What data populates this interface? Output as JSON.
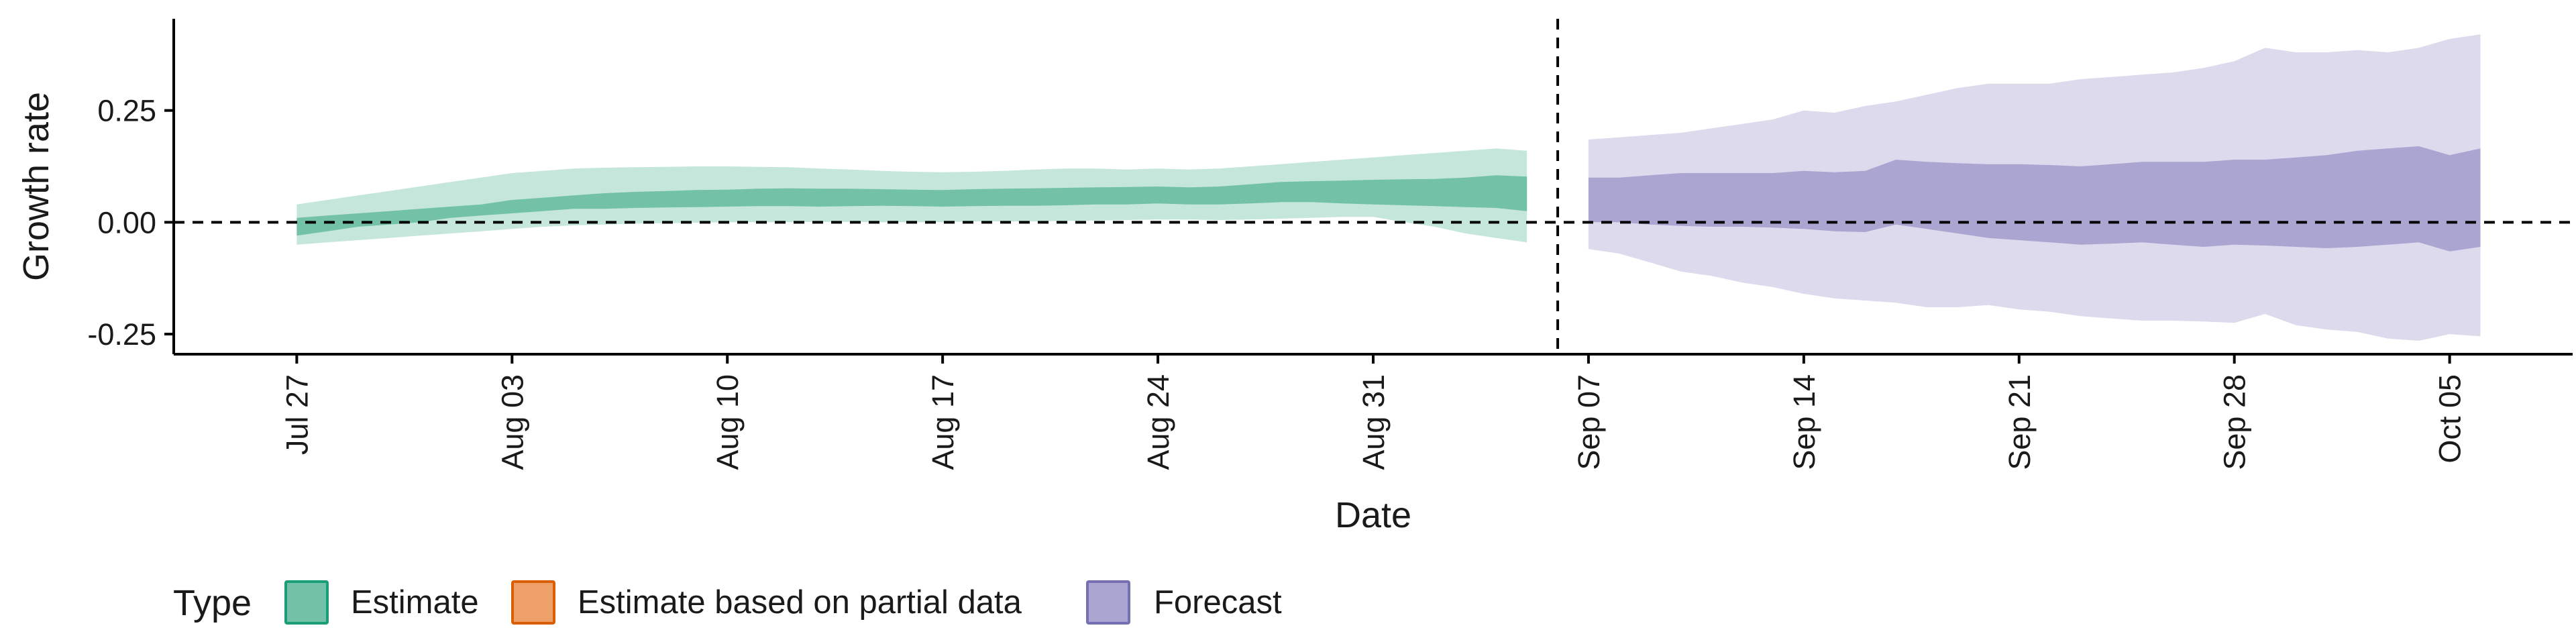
{
  "chart_data": {
    "type": "area",
    "xlabel": "Date",
    "ylabel": "Growth rate",
    "x_axis_type": "date",
    "xlim": [
      "2020-07-23",
      "2020-10-09"
    ],
    "ylim": [
      -0.295,
      0.455
    ],
    "yticks": [
      -0.25,
      0.0,
      0.25
    ],
    "ytick_labels": [
      "-0.25",
      "0.00",
      "0.25"
    ],
    "xticks": [
      "2020-07-27",
      "2020-08-03",
      "2020-08-10",
      "2020-08-17",
      "2020-08-24",
      "2020-08-31",
      "2020-09-07",
      "2020-09-14",
      "2020-09-21",
      "2020-09-28",
      "2020-10-05"
    ],
    "xtick_labels": [
      "Jul 27",
      "Aug 03",
      "Aug 10",
      "Aug 17",
      "Aug 24",
      "Aug 31",
      "Sep 07",
      "Sep 14",
      "Sep 21",
      "Sep 28",
      "Oct 05"
    ],
    "hline": 0,
    "vline": "2020-09-06",
    "grid": false,
    "legend": {
      "title": "Type",
      "position": "bottom-left",
      "entries": [
        {
          "label": "Estimate",
          "fill": "#73c2a8",
          "stroke": "#1b9e77"
        },
        {
          "label": "Estimate based on partial data",
          "fill": "#eda068",
          "stroke": "#d95f02"
        },
        {
          "label": "Forecast",
          "fill": "#aba5d1",
          "stroke": "#7570b3"
        }
      ]
    },
    "series": [
      {
        "name": "Estimate",
        "outer_color": "#c5e6db",
        "inner_color": "#73c2a8",
        "x": [
          "2020-07-27",
          "2020-07-28",
          "2020-07-29",
          "2020-07-30",
          "2020-07-31",
          "2020-08-01",
          "2020-08-02",
          "2020-08-03",
          "2020-08-04",
          "2020-08-05",
          "2020-08-06",
          "2020-08-07",
          "2020-08-08",
          "2020-08-09",
          "2020-08-10",
          "2020-08-11",
          "2020-08-12",
          "2020-08-13",
          "2020-08-14",
          "2020-08-15",
          "2020-08-16",
          "2020-08-17",
          "2020-08-18",
          "2020-08-19",
          "2020-08-20",
          "2020-08-21",
          "2020-08-22",
          "2020-08-23",
          "2020-08-24",
          "2020-08-25",
          "2020-08-26",
          "2020-08-27",
          "2020-08-28",
          "2020-08-29",
          "2020-08-30",
          "2020-08-31",
          "2020-09-01",
          "2020-09-02",
          "2020-09-03",
          "2020-09-04",
          "2020-09-05"
        ],
        "lower_90": [
          -0.05,
          -0.045,
          -0.04,
          -0.035,
          -0.03,
          -0.025,
          -0.02,
          -0.015,
          -0.01,
          -0.007,
          -0.005,
          -0.003,
          -0.002,
          -0.001,
          0.0,
          0.0,
          0.0,
          0.001,
          0.001,
          0.0,
          0.0,
          0.0,
          0.002,
          0.002,
          0.002,
          0.003,
          0.004,
          0.005,
          0.006,
          0.006,
          0.005,
          0.006,
          0.008,
          0.01,
          0.012,
          0.012,
          0.0,
          -0.01,
          -0.025,
          -0.035,
          -0.045
        ],
        "lower_50": [
          -0.03,
          -0.02,
          -0.01,
          -0.005,
          0.0,
          0.01,
          0.015,
          0.02,
          0.025,
          0.03,
          0.03,
          0.032,
          0.033,
          0.034,
          0.035,
          0.036,
          0.036,
          0.035,
          0.036,
          0.037,
          0.036,
          0.035,
          0.036,
          0.037,
          0.037,
          0.038,
          0.04,
          0.04,
          0.042,
          0.04,
          0.04,
          0.042,
          0.045,
          0.045,
          0.042,
          0.04,
          0.038,
          0.036,
          0.034,
          0.032,
          0.025
        ],
        "upper_50": [
          0.01,
          0.015,
          0.02,
          0.025,
          0.03,
          0.035,
          0.04,
          0.05,
          0.055,
          0.06,
          0.065,
          0.068,
          0.07,
          0.072,
          0.073,
          0.075,
          0.076,
          0.075,
          0.075,
          0.074,
          0.073,
          0.072,
          0.074,
          0.075,
          0.076,
          0.077,
          0.078,
          0.079,
          0.08,
          0.078,
          0.08,
          0.085,
          0.09,
          0.092,
          0.093,
          0.095,
          0.096,
          0.097,
          0.1,
          0.105,
          0.102
        ],
        "upper_90": [
          0.04,
          0.05,
          0.06,
          0.07,
          0.08,
          0.09,
          0.1,
          0.11,
          0.115,
          0.12,
          0.122,
          0.123,
          0.124,
          0.125,
          0.125,
          0.124,
          0.123,
          0.12,
          0.118,
          0.115,
          0.113,
          0.112,
          0.113,
          0.115,
          0.118,
          0.12,
          0.12,
          0.118,
          0.12,
          0.118,
          0.12,
          0.125,
          0.13,
          0.135,
          0.14,
          0.145,
          0.15,
          0.155,
          0.16,
          0.165,
          0.16
        ]
      },
      {
        "name": "Forecast",
        "outer_color": "#dcdaec",
        "inner_color": "#aba5d1",
        "x": [
          "2020-09-07",
          "2020-09-08",
          "2020-09-09",
          "2020-09-10",
          "2020-09-11",
          "2020-09-12",
          "2020-09-13",
          "2020-09-14",
          "2020-09-15",
          "2020-09-16",
          "2020-09-17",
          "2020-09-18",
          "2020-09-19",
          "2020-09-20",
          "2020-09-21",
          "2020-09-22",
          "2020-09-23",
          "2020-09-24",
          "2020-09-25",
          "2020-09-26",
          "2020-09-27",
          "2020-09-28",
          "2020-09-29",
          "2020-09-30",
          "2020-10-01",
          "2020-10-02",
          "2020-10-03",
          "2020-10-04",
          "2020-10-05",
          "2020-10-06"
        ],
        "lower_90": [
          -0.06,
          -0.07,
          -0.09,
          -0.11,
          -0.12,
          -0.135,
          -0.145,
          -0.16,
          -0.17,
          -0.175,
          -0.18,
          -0.19,
          -0.19,
          -0.185,
          -0.195,
          -0.2,
          -0.21,
          -0.215,
          -0.22,
          -0.22,
          -0.222,
          -0.225,
          -0.205,
          -0.23,
          -0.24,
          -0.245,
          -0.26,
          -0.265,
          -0.25,
          -0.255
        ],
        "lower_50": [
          0.0,
          0.0,
          -0.005,
          -0.008,
          -0.01,
          -0.01,
          -0.012,
          -0.015,
          -0.02,
          -0.022,
          -0.005,
          -0.015,
          -0.025,
          -0.035,
          -0.04,
          -0.045,
          -0.05,
          -0.048,
          -0.045,
          -0.05,
          -0.055,
          -0.05,
          -0.052,
          -0.055,
          -0.058,
          -0.055,
          -0.05,
          -0.045,
          -0.065,
          -0.055
        ],
        "upper_50": [
          0.1,
          0.1,
          0.105,
          0.11,
          0.11,
          0.11,
          0.11,
          0.115,
          0.112,
          0.115,
          0.14,
          0.135,
          0.132,
          0.13,
          0.13,
          0.128,
          0.125,
          0.13,
          0.135,
          0.135,
          0.135,
          0.14,
          0.14,
          0.145,
          0.15,
          0.16,
          0.165,
          0.17,
          0.15,
          0.165
        ],
        "upper_90": [
          0.185,
          0.19,
          0.195,
          0.2,
          0.21,
          0.22,
          0.23,
          0.25,
          0.245,
          0.26,
          0.27,
          0.285,
          0.3,
          0.31,
          0.31,
          0.31,
          0.32,
          0.325,
          0.33,
          0.335,
          0.345,
          0.36,
          0.39,
          0.38,
          0.38,
          0.385,
          0.38,
          0.39,
          0.41,
          0.42
        ]
      }
    ]
  }
}
